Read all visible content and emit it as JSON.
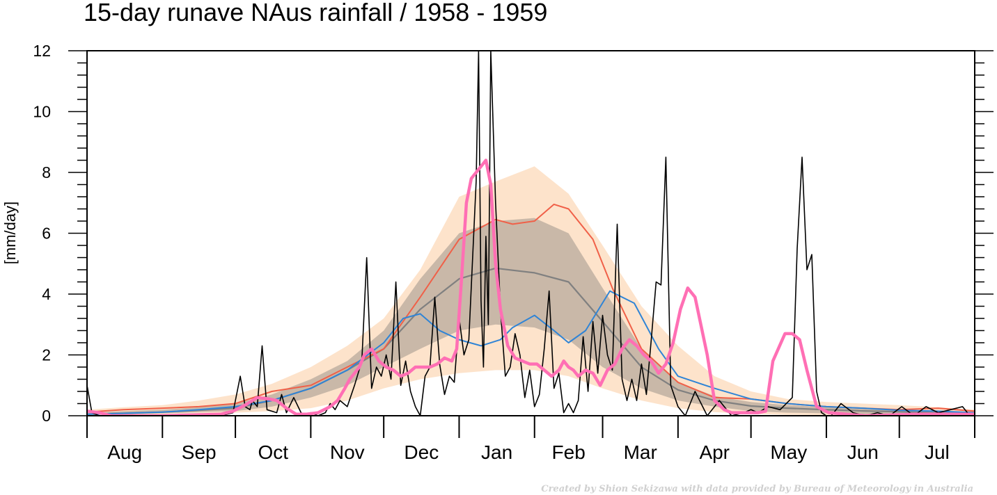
{
  "title": "15-day runave NAus rainfall  /  1958 - 1959",
  "credit": "Created by Shion Sekizawa with data provided by Bureau of Meteorology in Australia",
  "chart_data": {
    "type": "line",
    "ylabel": "[mm/day]",
    "ylim": [
      0,
      12
    ],
    "y_ticks": [
      0,
      2,
      4,
      6,
      8,
      10,
      12
    ],
    "xlim_days": [
      0,
      365
    ],
    "months": [
      "Aug",
      "Sep",
      "Oct",
      "Nov",
      "Dec",
      "Jan",
      "Feb",
      "Mar",
      "Apr",
      "May",
      "Jun",
      "Jul"
    ],
    "month_boundaries_day": [
      0,
      31,
      61,
      92,
      122,
      153,
      184,
      212,
      243,
      273,
      304,
      334,
      365
    ],
    "colors": {
      "outer_band": "#fde3cb",
      "inner_band": "#c9b8a8",
      "daily": "#000000",
      "climatology_mean": "#808080",
      "red_line": "#f06048",
      "blue_line": "#2f84d6",
      "runave_1958_1959": "#ff6fb4"
    },
    "outer_band": {
      "day": [
        0,
        15,
        31,
        46,
        61,
        76,
        92,
        107,
        122,
        137,
        153,
        168,
        184,
        198,
        212,
        228,
        243,
        258,
        273,
        288,
        304,
        319,
        334,
        350,
        365
      ],
      "lower": [
        0.02,
        0.02,
        0.05,
        0.08,
        0.1,
        0.15,
        0.25,
        0.5,
        0.9,
        1.2,
        1.4,
        1.5,
        1.5,
        1.3,
        0.9,
        0.5,
        0.25,
        0.12,
        0.06,
        0.03,
        0.02,
        0.01,
        0.01,
        0.01,
        0.01
      ],
      "upper": [
        0.2,
        0.28,
        0.35,
        0.5,
        0.7,
        1.05,
        1.6,
        2.3,
        3.2,
        4.8,
        7.2,
        7.7,
        8.2,
        7.3,
        5.6,
        3.6,
        2.3,
        1.3,
        0.8,
        0.55,
        0.45,
        0.4,
        0.35,
        0.28,
        0.2
      ]
    },
    "inner_band": {
      "day": [
        0,
        15,
        31,
        46,
        61,
        76,
        92,
        107,
        122,
        137,
        153,
        168,
        184,
        198,
        212,
        228,
        243,
        258,
        273,
        288,
        304,
        319,
        334,
        350,
        365
      ],
      "lower": [
        0.03,
        0.05,
        0.08,
        0.12,
        0.15,
        0.3,
        0.6,
        1.0,
        1.6,
        2.2,
        2.8,
        3.0,
        2.9,
        2.5,
        1.6,
        0.9,
        0.5,
        0.3,
        0.15,
        0.1,
        0.08,
        0.06,
        0.05,
        0.04,
        0.03
      ],
      "upper": [
        0.1,
        0.15,
        0.2,
        0.28,
        0.4,
        0.7,
        1.2,
        1.8,
        2.8,
        4.5,
        6.0,
        6.4,
        6.5,
        6.0,
        4.2,
        2.2,
        1.1,
        0.65,
        0.45,
        0.35,
        0.28,
        0.22,
        0.18,
        0.14,
        0.1
      ]
    },
    "series": [
      {
        "key": "climatology_mean",
        "day": [
          0,
          15,
          31,
          46,
          61,
          76,
          92,
          107,
          122,
          137,
          153,
          168,
          184,
          198,
          212,
          228,
          243,
          258,
          273,
          288,
          304,
          319,
          334,
          350,
          365
        ],
        "values": [
          0.05,
          0.08,
          0.12,
          0.18,
          0.25,
          0.5,
          0.9,
          1.5,
          2.2,
          3.5,
          4.5,
          4.85,
          4.7,
          4.4,
          3.1,
          1.6,
          0.85,
          0.5,
          0.32,
          0.25,
          0.2,
          0.16,
          0.13,
          0.1,
          0.08
        ]
      },
      {
        "key": "red_line",
        "day": [
          0,
          15,
          31,
          46,
          61,
          76,
          92,
          107,
          122,
          137,
          153,
          168,
          175,
          184,
          192,
          198,
          208,
          216,
          228,
          243,
          258,
          273,
          288,
          304,
          319,
          334,
          350,
          365
        ],
        "values": [
          0.12,
          0.2,
          0.25,
          0.3,
          0.4,
          0.8,
          1.0,
          1.6,
          2.2,
          3.9,
          5.8,
          6.45,
          6.3,
          6.4,
          6.95,
          6.8,
          5.8,
          4.2,
          2.2,
          1.1,
          0.6,
          0.55,
          0.4,
          0.3,
          0.25,
          0.2,
          0.25,
          0.15
        ]
      },
      {
        "key": "blue_line",
        "day": [
          0,
          15,
          31,
          46,
          61,
          76,
          92,
          107,
          122,
          130,
          137,
          145,
          153,
          162,
          170,
          175,
          184,
          192,
          198,
          205,
          215,
          225,
          235,
          243,
          258,
          273,
          288,
          304,
          319,
          334,
          350,
          365
        ],
        "values": [
          0.05,
          0.08,
          0.12,
          0.2,
          0.3,
          0.5,
          0.9,
          1.5,
          2.4,
          3.2,
          3.35,
          2.8,
          2.5,
          2.3,
          2.5,
          2.9,
          3.3,
          2.8,
          2.4,
          2.8,
          4.1,
          3.7,
          2.2,
          1.3,
          0.9,
          0.55,
          0.4,
          0.3,
          0.25,
          0.18,
          0.15,
          0.1
        ]
      },
      {
        "key": "daily",
        "day": [
          0,
          2,
          5,
          10,
          20,
          30,
          40,
          50,
          55,
          60,
          63,
          65,
          67,
          68,
          70,
          72,
          74,
          78,
          80,
          82,
          85,
          88,
          90,
          92,
          95,
          98,
          100,
          102,
          104,
          107,
          110,
          113,
          115,
          117,
          119,
          121,
          123,
          125,
          127,
          129,
          131,
          133,
          135,
          137,
          139,
          141,
          143,
          145,
          147,
          149,
          151,
          153,
          155,
          157,
          160,
          161,
          162,
          163,
          164,
          165,
          166,
          168,
          170,
          172,
          174,
          176,
          178,
          180,
          182,
          184,
          186,
          188,
          190,
          192,
          194,
          196,
          198,
          200,
          202,
          204,
          206,
          208,
          210,
          212,
          214,
          216,
          218,
          220,
          222,
          224,
          226,
          228,
          230,
          232,
          234,
          236,
          238,
          240,
          243,
          246,
          250,
          255,
          260,
          265,
          270,
          273,
          276,
          280,
          285,
          290,
          292,
          294,
          296,
          298,
          300,
          302,
          304,
          306,
          310,
          315,
          320,
          325,
          330,
          335,
          340,
          345,
          350,
          355,
          360,
          362,
          365
        ],
        "values": [
          1.0,
          0.1,
          0.0,
          0.0,
          0.0,
          0.0,
          0.0,
          0.0,
          0.0,
          0.1,
          1.3,
          0.3,
          0.2,
          0.5,
          0.3,
          2.3,
          0.2,
          0.1,
          0.7,
          0.1,
          0.6,
          0.1,
          0.0,
          0.1,
          0.0,
          0.1,
          0.4,
          0.2,
          0.5,
          0.3,
          1.0,
          1.8,
          5.2,
          0.9,
          1.6,
          1.3,
          2.0,
          1.2,
          4.4,
          1.0,
          1.8,
          0.8,
          0.3,
          0.0,
          1.3,
          1.6,
          3.9,
          1.7,
          0.7,
          1.3,
          1.1,
          3.2,
          2.0,
          2.5,
          7.7,
          12.5,
          3.8,
          1.6,
          5.9,
          3.0,
          13.0,
          7.0,
          3.5,
          1.3,
          1.6,
          2.7,
          2.0,
          0.6,
          1.5,
          0.3,
          0.7,
          2.2,
          4.1,
          0.9,
          1.4,
          0.1,
          0.4,
          0.1,
          0.5,
          2.6,
          0.8,
          3.1,
          1.4,
          3.3,
          2.0,
          1.5,
          6.3,
          1.2,
          0.5,
          1.2,
          0.5,
          1.7,
          0.7,
          2.5,
          4.4,
          4.3,
          8.5,
          1.0,
          0.3,
          0.0,
          0.8,
          0.0,
          0.5,
          0.0,
          0.1,
          0.2,
          0.1,
          0.3,
          0.2,
          0.6,
          5.5,
          8.5,
          4.8,
          5.3,
          0.8,
          0.1,
          0.0,
          0.0,
          0.4,
          0.1,
          0.0,
          0.1,
          0.0,
          0.3,
          0.0,
          0.3,
          0.1,
          0.2,
          0.3,
          0.1
        ]
      },
      {
        "key": "runave_1958_1959",
        "day": [
          0,
          5,
          10,
          30,
          55,
          60,
          65,
          70,
          75,
          78,
          82,
          86,
          90,
          95,
          100,
          103,
          106,
          108,
          110,
          112,
          114,
          117,
          120,
          123,
          126,
          129,
          132,
          135,
          138,
          141,
          144,
          147,
          150,
          152,
          154,
          156,
          158,
          160,
          162,
          164,
          166,
          168,
          170,
          173,
          176,
          179,
          182,
          185,
          188,
          191,
          194,
          196,
          198,
          200,
          202,
          205,
          208,
          211,
          214,
          217,
          220,
          223,
          226,
          229,
          232,
          235,
          238,
          241,
          244,
          247,
          250,
          255,
          258,
          262,
          265,
          268,
          270,
          273,
          276,
          279,
          282,
          287,
          290,
          293,
          296,
          300,
          305,
          320,
          340,
          365
        ],
        "values": [
          0.15,
          0.1,
          0.0,
          0.0,
          0.05,
          0.15,
          0.35,
          0.6,
          0.55,
          0.5,
          0.25,
          0.05,
          0.05,
          0.1,
          0.3,
          0.5,
          0.9,
          1.2,
          1.4,
          1.6,
          2.0,
          2.2,
          1.8,
          1.6,
          1.5,
          1.3,
          1.4,
          1.6,
          1.6,
          1.6,
          1.7,
          1.9,
          1.8,
          2.2,
          4.5,
          7.0,
          7.8,
          8.0,
          8.2,
          8.4,
          7.6,
          5.0,
          3.5,
          2.3,
          1.9,
          1.8,
          1.7,
          1.7,
          1.5,
          1.3,
          1.5,
          1.8,
          1.6,
          1.5,
          1.3,
          1.5,
          1.4,
          1.0,
          1.5,
          1.7,
          2.2,
          2.5,
          2.3,
          2.0,
          1.8,
          1.4,
          1.7,
          2.4,
          3.5,
          4.2,
          3.9,
          2.0,
          0.5,
          0.2,
          0.1,
          0.1,
          0.1,
          0.1,
          0.1,
          0.15,
          1.8,
          2.7,
          2.7,
          2.5,
          1.5,
          0.3,
          0.1,
          0.0,
          0.05,
          0.05
        ]
      }
    ]
  }
}
